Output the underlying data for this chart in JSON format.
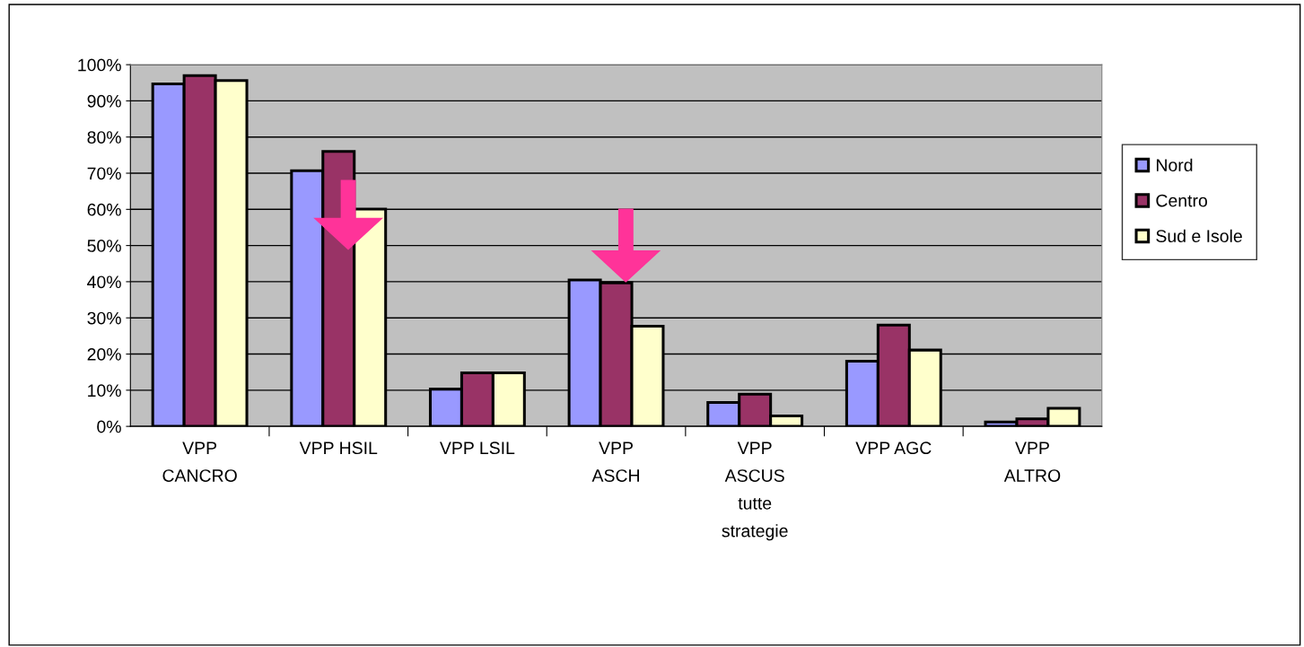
{
  "chart_data": {
    "type": "bar",
    "categories": [
      "VPP\nCANCRO",
      "VPP HSIL",
      "VPP LSIL",
      "VPP\nASCH",
      "VPP\nASCUS\ntutte\nstrategie",
      "VPP AGC",
      "VPP\nALTRO"
    ],
    "series": [
      {
        "name": "Nord",
        "color": "#9999ff",
        "values": [
          94.7,
          70.7,
          10.3,
          40.5,
          6.6,
          18.0,
          1.2
        ]
      },
      {
        "name": "Centro",
        "color": "#993366",
        "values": [
          97.0,
          76.0,
          14.8,
          39.7,
          8.9,
          28.0,
          2.1
        ]
      },
      {
        "name": "Sud e Isole",
        "color": "#ffffcc",
        "values": [
          95.6,
          60.1,
          14.8,
          27.7,
          2.9,
          21.1,
          5.0
        ]
      }
    ],
    "ylim": [
      0,
      100
    ],
    "yticks": [
      {
        "value": 0,
        "label": "0%"
      },
      {
        "value": 10,
        "label": "10%"
      },
      {
        "value": 20,
        "label": "20%"
      },
      {
        "value": 30,
        "label": "30%"
      },
      {
        "value": 40,
        "label": "40%"
      },
      {
        "value": 50,
        "label": "50%"
      },
      {
        "value": 60,
        "label": "60%"
      },
      {
        "value": 70,
        "label": "70%"
      },
      {
        "value": 80,
        "label": "80%"
      },
      {
        "value": 90,
        "label": "90%"
      },
      {
        "value": 100,
        "label": "100%"
      }
    ],
    "grid": "y",
    "legend": "right"
  }
}
